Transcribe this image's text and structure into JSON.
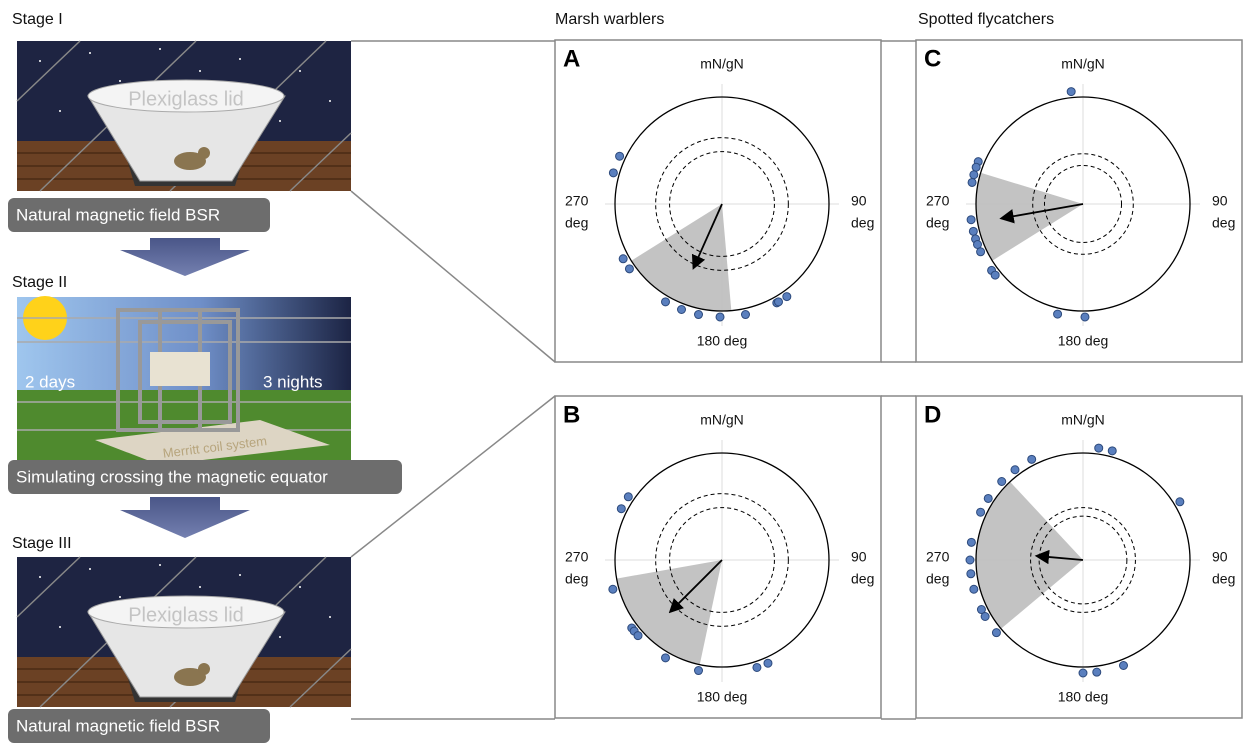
{
  "stages": [
    {
      "label": "Stage I",
      "lid": "Plexiglass lid",
      "caption": "Natural magnetic field BSR"
    },
    {
      "label": "Stage II",
      "left": "2 days",
      "right": "3 nights",
      "coil": "Merritt coil system",
      "caption": "Simulating crossing the magnetic equator"
    },
    {
      "label": "Stage III",
      "lid": "Plexiglass lid",
      "caption": "Natural magnetic field BSR"
    }
  ],
  "columns": [
    "Marsh warblers",
    "Spotted flycatchers"
  ],
  "panels": [
    {
      "letter": "A",
      "north": "mN/gN",
      "east": [
        "90",
        "deg"
      ],
      "west": [
        "270",
        "deg"
      ],
      "south": "180 deg",
      "points": [
        295,
        286,
        241,
        235,
        210,
        201,
        192,
        181,
        168,
        151,
        150,
        145
      ],
      "mean_direction": 204,
      "mean_length": 0.64,
      "ci": [
        175,
        238
      ],
      "thresholds": [
        0.49,
        0.62
      ]
    },
    {
      "letter": "C",
      "north": "mN/gN",
      "east": [
        "90",
        "deg"
      ],
      "west": [
        "270",
        "deg"
      ],
      "south": "180 deg",
      "points": [
        354,
        292,
        289,
        285,
        281,
        262,
        256,
        252,
        249,
        245,
        234,
        231,
        193,
        179
      ],
      "mean_direction": 260,
      "mean_length": 0.76,
      "ci": [
        238,
        287
      ],
      "thresholds": [
        0.36,
        0.47
      ]
    },
    {
      "letter": "B",
      "north": "mN/gN",
      "east": [
        "90",
        "deg"
      ],
      "west": [
        "270",
        "deg"
      ],
      "south": "180 deg",
      "points": [
        304,
        297,
        255,
        233,
        231,
        228,
        210,
        192,
        162,
        156
      ],
      "mean_direction": 225,
      "mean_length": 0.67,
      "ci": [
        192,
        260
      ],
      "thresholds": [
        0.49,
        0.62
      ]
    },
    {
      "letter": "D",
      "north": "mN/gN",
      "east": [
        "90",
        "deg"
      ],
      "west": [
        "270",
        "deg"
      ],
      "south": "180 deg",
      "points": [
        15,
        8,
        59,
        333,
        323,
        314,
        303,
        295,
        279,
        270,
        263,
        255,
        244,
        240,
        230,
        180,
        173,
        159
      ],
      "mean_direction": 275,
      "mean_length": 0.42,
      "ci": [
        230,
        317
      ],
      "thresholds": [
        0.41,
        0.49
      ]
    }
  ]
}
